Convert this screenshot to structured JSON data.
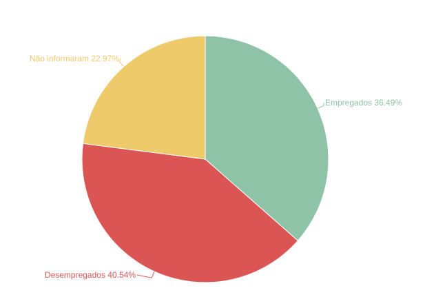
{
  "chart_data": {
    "type": "pie",
    "slices": [
      {
        "label": "Empregados",
        "value": 36.49,
        "display": "Empregados 36.49%",
        "color": "#8fc3a8"
      },
      {
        "label": "Desempregados",
        "value": 40.54,
        "display": "Desempregados 40.54%",
        "color": "#dc5555"
      },
      {
        "label": "Não informaram",
        "value": 22.97,
        "display": "Não informaram 22.97%",
        "color": "#eeca6a"
      }
    ]
  }
}
